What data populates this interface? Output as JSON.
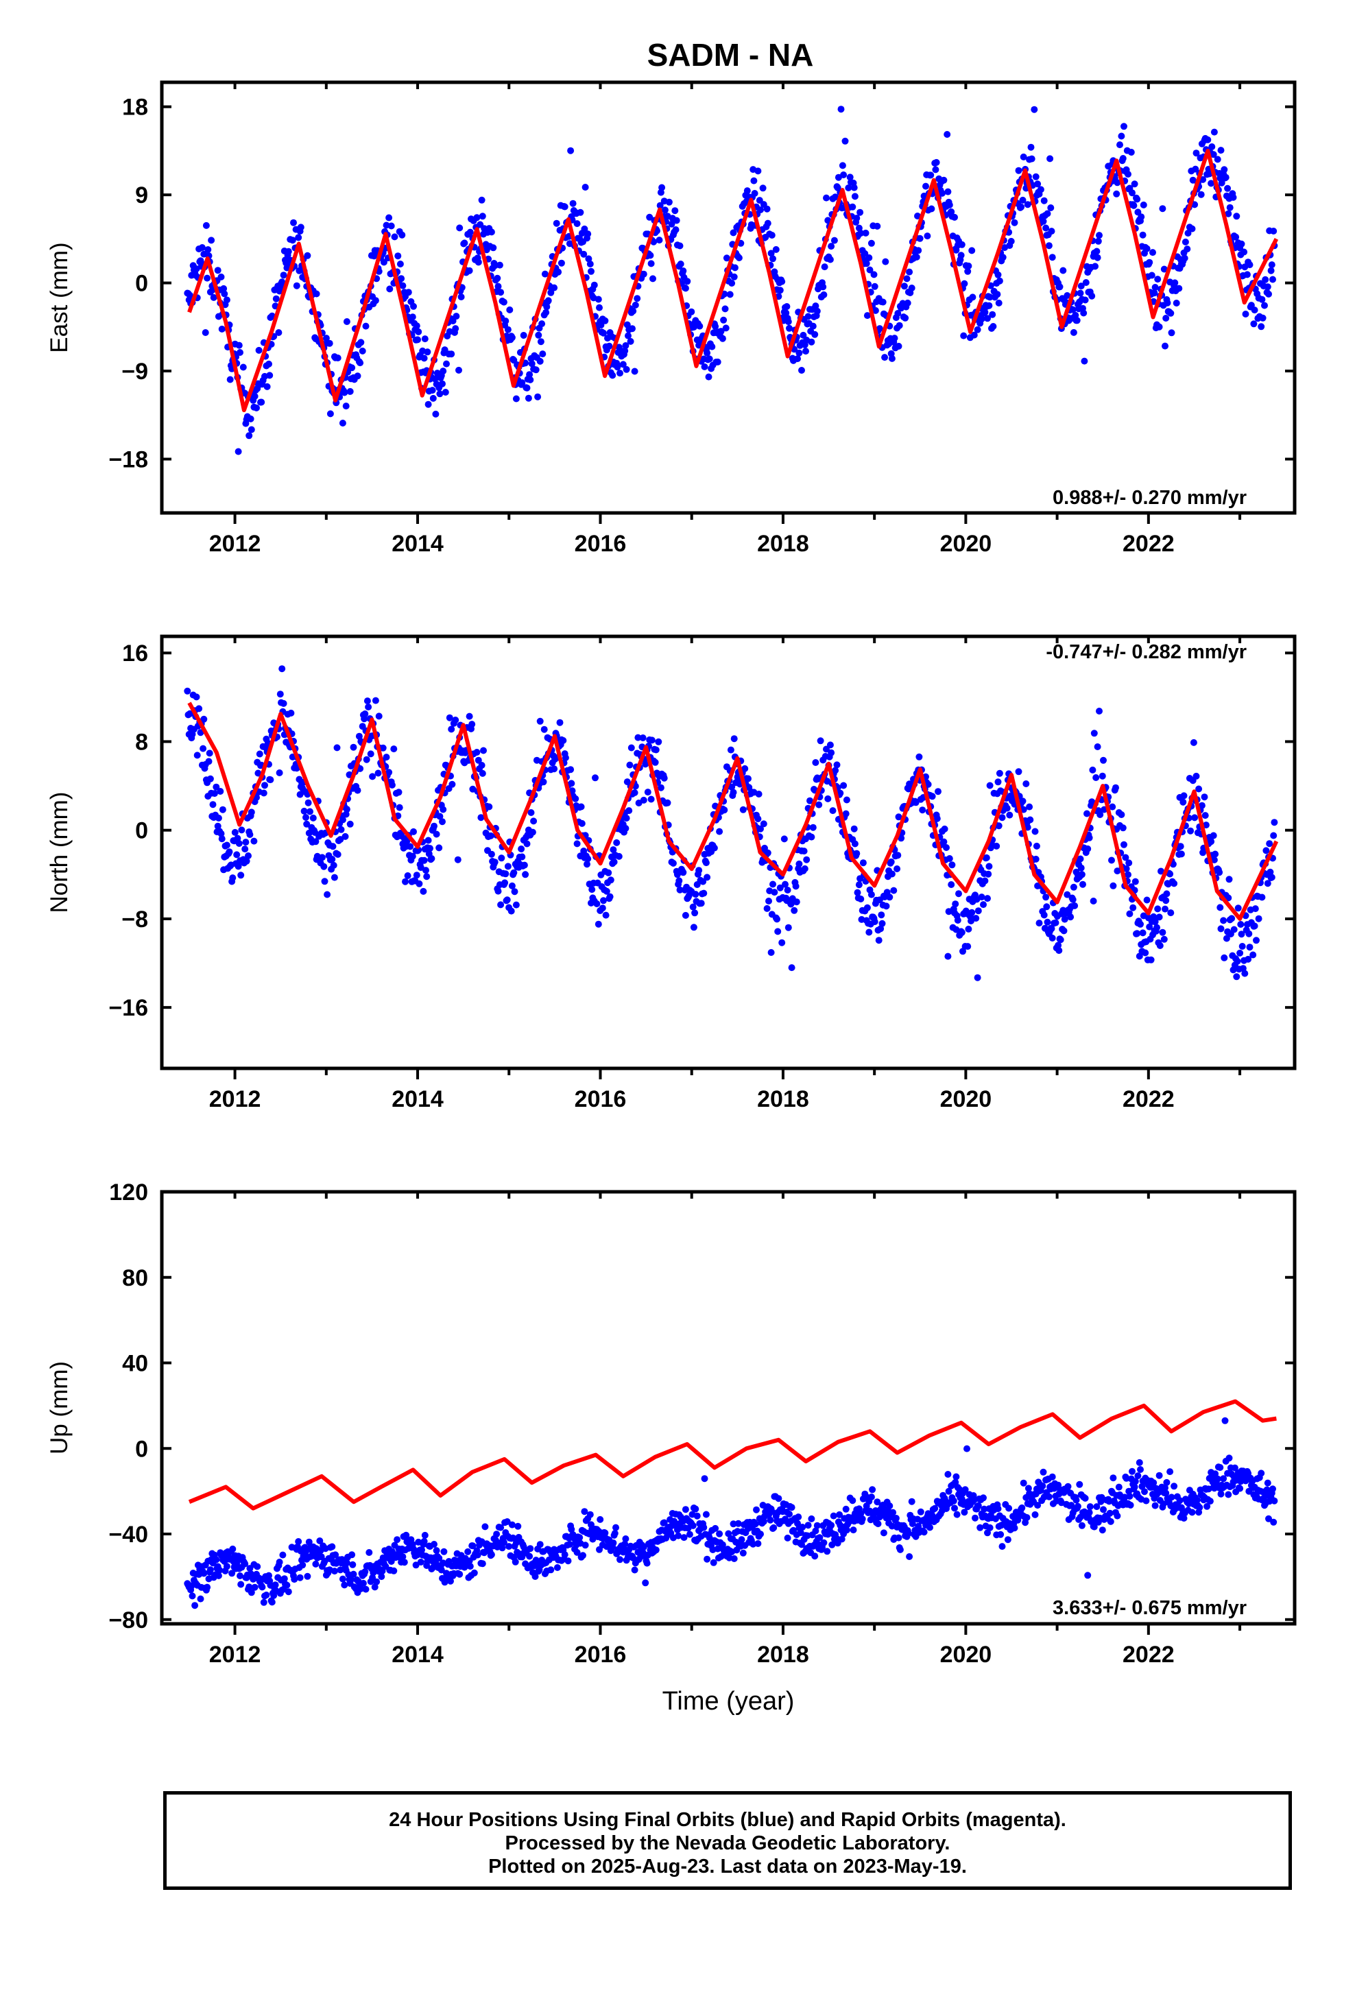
{
  "title": "SADM - NA",
  "xlabel": "Time (year)",
  "footer": {
    "line1": "24 Hour Positions Using Final Orbits (blue) and Rapid Orbits (magenta).",
    "line2": "Processed by the Nevada Geodetic Laboratory.",
    "line3": "Plotted on 2025-Aug-23. Last data on 2023-May-19."
  },
  "colors": {
    "points": "#0000ff",
    "model": "#ff0000",
    "axes": "#000000"
  },
  "chart_data": [
    {
      "type": "scatter",
      "component": "east",
      "ylabel": "East (mm)",
      "rate_label": "0.988+/- 0.270 mm/yr",
      "xlim": [
        2011.2,
        2023.6
      ],
      "ylim": [
        -23.5,
        20.5
      ],
      "yticks": [
        -18,
        -9,
        0,
        9,
        18
      ],
      "xticks": [
        2012,
        2014,
        2016,
        2018,
        2020,
        2022
      ],
      "model": {
        "name": "model fit",
        "points": [
          [
            2011.5,
            -3
          ],
          [
            2011.7,
            2.5
          ],
          [
            2011.9,
            -4
          ],
          [
            2012.1,
            -13
          ],
          [
            2012.4,
            -5
          ],
          [
            2012.7,
            4
          ],
          [
            2012.9,
            -4
          ],
          [
            2013.1,
            -12
          ],
          [
            2013.4,
            -3
          ],
          [
            2013.65,
            5
          ],
          [
            2013.85,
            -3
          ],
          [
            2014.05,
            -11.5
          ],
          [
            2014.35,
            -3
          ],
          [
            2014.65,
            5.5
          ],
          [
            2014.85,
            -2
          ],
          [
            2015.05,
            -10.5
          ],
          [
            2015.35,
            -2
          ],
          [
            2015.65,
            6.5
          ],
          [
            2015.85,
            -1
          ],
          [
            2016.05,
            -9.5
          ],
          [
            2016.35,
            -1
          ],
          [
            2016.65,
            7.5
          ],
          [
            2016.85,
            0
          ],
          [
            2017.05,
            -8.5
          ],
          [
            2017.35,
            0
          ],
          [
            2017.65,
            8.5
          ],
          [
            2017.85,
            1
          ],
          [
            2018.05,
            -7.5
          ],
          [
            2018.35,
            1
          ],
          [
            2018.65,
            9.5
          ],
          [
            2018.85,
            2
          ],
          [
            2019.05,
            -6.5
          ],
          [
            2019.35,
            2
          ],
          [
            2019.65,
            10.5
          ],
          [
            2019.85,
            3
          ],
          [
            2020.05,
            -5
          ],
          [
            2020.35,
            3
          ],
          [
            2020.65,
            11.5
          ],
          [
            2020.85,
            4
          ],
          [
            2021.05,
            -4.5
          ],
          [
            2021.35,
            4
          ],
          [
            2021.65,
            12.5
          ],
          [
            2021.85,
            5
          ],
          [
            2022.05,
            -3.5
          ],
          [
            2022.35,
            5
          ],
          [
            2022.65,
            13.5
          ],
          [
            2022.85,
            6
          ],
          [
            2023.05,
            -2
          ],
          [
            2023.4,
            4.5
          ]
        ]
      },
      "seasonal": {
        "trend_mm_per_yr": 0.988,
        "offset": -5.4,
        "amplitude": 7.4,
        "phase_peak": 0.67,
        "noise": 2.3
      }
    },
    {
      "type": "scatter",
      "component": "north",
      "ylabel": "North (mm)",
      "rate_label": "-0.747+/- 0.282 mm/yr",
      "xlim": [
        2011.2,
        2023.6
      ],
      "ylim": [
        -21.5,
        17.5
      ],
      "yticks": [
        -16,
        -8,
        0,
        8,
        16
      ],
      "xticks": [
        2012,
        2014,
        2016,
        2018,
        2020,
        2022
      ],
      "model": {
        "name": "model fit",
        "points": [
          [
            2011.5,
            11.5
          ],
          [
            2011.8,
            7
          ],
          [
            2012.05,
            0.5
          ],
          [
            2012.3,
            5
          ],
          [
            2012.5,
            10.5
          ],
          [
            2012.8,
            4
          ],
          [
            2013.05,
            -0.5
          ],
          [
            2013.3,
            5
          ],
          [
            2013.5,
            10
          ],
          [
            2013.75,
            1
          ],
          [
            2014.0,
            -1.5
          ],
          [
            2014.25,
            3
          ],
          [
            2014.5,
            9.5
          ],
          [
            2014.75,
            1
          ],
          [
            2015.0,
            -2
          ],
          [
            2015.25,
            3
          ],
          [
            2015.5,
            8.5
          ],
          [
            2015.75,
            0
          ],
          [
            2016.0,
            -3
          ],
          [
            2016.25,
            2
          ],
          [
            2016.5,
            7.5
          ],
          [
            2016.75,
            -1
          ],
          [
            2017.0,
            -3.5
          ],
          [
            2017.25,
            1
          ],
          [
            2017.5,
            6.5
          ],
          [
            2017.75,
            -2
          ],
          [
            2018.0,
            -4
          ],
          [
            2018.25,
            0.5
          ],
          [
            2018.5,
            6
          ],
          [
            2018.75,
            -2.5
          ],
          [
            2019.0,
            -5
          ],
          [
            2019.25,
            -0.5
          ],
          [
            2019.5,
            5.5
          ],
          [
            2019.75,
            -3
          ],
          [
            2020.0,
            -5.5
          ],
          [
            2020.25,
            -1
          ],
          [
            2020.5,
            5
          ],
          [
            2020.75,
            -4
          ],
          [
            2021.0,
            -6.5
          ],
          [
            2021.25,
            -1.5
          ],
          [
            2021.5,
            4
          ],
          [
            2021.75,
            -5
          ],
          [
            2022.0,
            -7.5
          ],
          [
            2022.25,
            -2.5
          ],
          [
            2022.5,
            3.5
          ],
          [
            2022.75,
            -5.5
          ],
          [
            2023.0,
            -8
          ],
          [
            2023.4,
            -1
          ]
        ]
      },
      "seasonal": {
        "trend_mm_per_yr": -0.747,
        "offset": 4.2,
        "amplitude": 6.2,
        "phase_peak": 0.5,
        "noise": 2.2
      }
    },
    {
      "type": "scatter",
      "component": "up",
      "ylabel": "Up (mm)",
      "rate_label": "3.633+/- 0.675 mm/yr",
      "xlim": [
        2011.2,
        2023.6
      ],
      "ylim": [
        -82,
        120
      ],
      "yticks": [
        -80,
        -40,
        0,
        40,
        80,
        120
      ],
      "xticks": [
        2012,
        2014,
        2016,
        2018,
        2020,
        2022
      ],
      "model": {
        "name": "model fit",
        "points": [
          [
            2011.5,
            -25
          ],
          [
            2011.9,
            -18
          ],
          [
            2012.2,
            -28
          ],
          [
            2012.6,
            -20
          ],
          [
            2012.95,
            -13
          ],
          [
            2013.3,
            -25
          ],
          [
            2013.6,
            -18
          ],
          [
            2013.95,
            -10
          ],
          [
            2014.25,
            -22
          ],
          [
            2014.6,
            -11
          ],
          [
            2014.95,
            -5
          ],
          [
            2015.25,
            -16
          ],
          [
            2015.6,
            -8
          ],
          [
            2015.95,
            -3
          ],
          [
            2016.25,
            -13
          ],
          [
            2016.6,
            -4
          ],
          [
            2016.95,
            2
          ],
          [
            2017.25,
            -9
          ],
          [
            2017.6,
            0
          ],
          [
            2017.95,
            4
          ],
          [
            2018.25,
            -6
          ],
          [
            2018.6,
            3
          ],
          [
            2018.95,
            8
          ],
          [
            2019.25,
            -2
          ],
          [
            2019.6,
            6
          ],
          [
            2019.95,
            12
          ],
          [
            2020.25,
            2
          ],
          [
            2020.6,
            10
          ],
          [
            2020.95,
            16
          ],
          [
            2021.25,
            5
          ],
          [
            2021.6,
            14
          ],
          [
            2021.95,
            20
          ],
          [
            2022.25,
            8
          ],
          [
            2022.6,
            17
          ],
          [
            2022.95,
            22
          ],
          [
            2023.25,
            13
          ],
          [
            2023.4,
            14
          ]
        ]
      },
      "seasonal": {
        "trend_mm_per_yr": 3.633,
        "offset": -60.6,
        "amplitude": 6.5,
        "phase_peak": 0.9,
        "noise": 6.0
      }
    }
  ]
}
